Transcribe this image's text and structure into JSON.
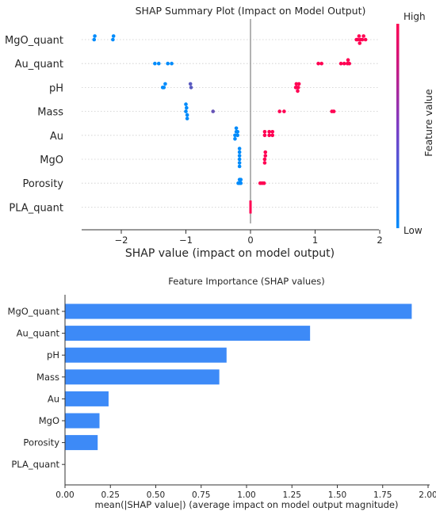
{
  "chart_data": [
    {
      "type": "scatter",
      "title": "SHAP Summary Plot (Impact on Model Output)",
      "xlabel": "SHAP value (impact on model output)",
      "ylabel": "",
      "xlim": [
        -2.65,
        2.05
      ],
      "xticks": [
        -2,
        -1,
        0,
        1,
        2
      ],
      "xtick_labels": [
        "−2",
        "−1",
        "0",
        "1",
        "2"
      ],
      "categories": [
        "MgO_quant",
        "Au_quant",
        "pH",
        "Mass",
        "Au",
        "MgO",
        "Porosity",
        "PLA_quant"
      ],
      "colorbar": {
        "label": "Feature value",
        "high_label": "High",
        "low_label": "Low",
        "high_color": "#ff0052",
        "low_color": "#008bfb"
      },
      "series": [
        {
          "feature": "MgO_quant",
          "points": [
            {
              "x": -2.42,
              "v": 0.0
            },
            {
              "x": -2.41,
              "v": 0.0
            },
            {
              "x": -2.13,
              "v": 0.0
            },
            {
              "x": -2.12,
              "v": 0.0
            },
            {
              "x": 1.64,
              "v": 1.0
            },
            {
              "x": 1.66,
              "v": 1.0
            },
            {
              "x": 1.68,
              "v": 1.0
            },
            {
              "x": 1.7,
              "v": 1.0
            },
            {
              "x": 1.73,
              "v": 1.0
            },
            {
              "x": 1.75,
              "v": 1.0
            },
            {
              "x": 1.78,
              "v": 1.0
            },
            {
              "x": 1.69,
              "v": 1.0
            }
          ]
        },
        {
          "feature": "Au_quant",
          "points": [
            {
              "x": -1.48,
              "v": 0.0
            },
            {
              "x": -1.42,
              "v": 0.0
            },
            {
              "x": -1.28,
              "v": 0.0
            },
            {
              "x": -1.22,
              "v": 0.0
            },
            {
              "x": 1.05,
              "v": 1.0
            },
            {
              "x": 1.1,
              "v": 1.0
            },
            {
              "x": 1.4,
              "v": 1.0
            },
            {
              "x": 1.45,
              "v": 1.0
            },
            {
              "x": 1.5,
              "v": 1.0
            },
            {
              "x": 1.53,
              "v": 1.0
            },
            {
              "x": 1.51,
              "v": 1.0
            }
          ]
        },
        {
          "feature": "pH",
          "points": [
            {
              "x": -1.36,
              "v": 0.0
            },
            {
              "x": -1.34,
              "v": 0.0
            },
            {
              "x": -1.32,
              "v": 0.0
            },
            {
              "x": -0.92,
              "v": 0.35
            },
            {
              "x": -0.93,
              "v": 0.35
            },
            {
              "x": 0.7,
              "v": 1.0
            },
            {
              "x": 0.72,
              "v": 1.0
            },
            {
              "x": 0.74,
              "v": 1.0
            },
            {
              "x": 0.75,
              "v": 1.0
            },
            {
              "x": 0.71,
              "v": 1.0
            },
            {
              "x": 0.73,
              "v": 1.0
            }
          ]
        },
        {
          "feature": "Mass",
          "points": [
            {
              "x": -1.0,
              "v": 0.0
            },
            {
              "x": -0.99,
              "v": 0.0
            },
            {
              "x": -0.98,
              "v": 0.0
            },
            {
              "x": -1.0,
              "v": 0.0
            },
            {
              "x": -0.98,
              "v": 0.0
            },
            {
              "x": -0.58,
              "v": 0.4
            },
            {
              "x": 0.45,
              "v": 1.0
            },
            {
              "x": 0.52,
              "v": 1.0
            },
            {
              "x": 1.26,
              "v": 1.0
            },
            {
              "x": 1.29,
              "v": 1.0
            }
          ]
        },
        {
          "feature": "Au",
          "points": [
            {
              "x": -0.24,
              "v": 0.0
            },
            {
              "x": -0.22,
              "v": 0.0
            },
            {
              "x": -0.2,
              "v": 0.0
            },
            {
              "x": -0.24,
              "v": 0.0
            },
            {
              "x": -0.22,
              "v": 0.0
            },
            {
              "x": -0.2,
              "v": 0.0
            },
            {
              "x": 0.22,
              "v": 1.0
            },
            {
              "x": 0.29,
              "v": 1.0
            },
            {
              "x": 0.34,
              "v": 1.0
            },
            {
              "x": 0.22,
              "v": 1.0
            },
            {
              "x": 0.29,
              "v": 1.0
            },
            {
              "x": 0.34,
              "v": 1.0
            }
          ]
        },
        {
          "feature": "MgO",
          "points": [
            {
              "x": -0.17,
              "v": 0.0
            },
            {
              "x": -0.17,
              "v": 0.0
            },
            {
              "x": -0.17,
              "v": 0.0
            },
            {
              "x": -0.17,
              "v": 0.0
            },
            {
              "x": -0.17,
              "v": 0.0
            },
            {
              "x": -0.17,
              "v": 0.0
            },
            {
              "x": 0.22,
              "v": 1.0
            },
            {
              "x": 0.23,
              "v": 1.0
            },
            {
              "x": 0.22,
              "v": 1.0
            },
            {
              "x": 0.23,
              "v": 1.0
            }
          ]
        },
        {
          "feature": "Porosity",
          "points": [
            {
              "x": -0.19,
              "v": 0.0
            },
            {
              "x": -0.17,
              "v": 0.0
            },
            {
              "x": -0.15,
              "v": 0.0
            },
            {
              "x": -0.17,
              "v": 0.0
            },
            {
              "x": -0.15,
              "v": 0.0
            },
            {
              "x": 0.15,
              "v": 1.0
            },
            {
              "x": 0.18,
              "v": 1.0
            },
            {
              "x": 0.21,
              "v": 1.0
            }
          ]
        },
        {
          "feature": "PLA_quant",
          "points": [
            {
              "x": 0.0,
              "v": 1.0
            },
            {
              "x": 0.0,
              "v": 1.0
            },
            {
              "x": 0.0,
              "v": 1.0
            },
            {
              "x": 0.0,
              "v": 1.0
            },
            {
              "x": 0.0,
              "v": 1.0
            },
            {
              "x": 0.0,
              "v": 1.0
            },
            {
              "x": 0.0,
              "v": 1.0
            },
            {
              "x": 0.0,
              "v": 1.0
            }
          ]
        }
      ]
    },
    {
      "type": "bar",
      "orientation": "horizontal",
      "title": "Feature Importance (SHAP values)",
      "xlabel": "mean(|SHAP value|) (average impact on model output magnitude)",
      "ylabel": "",
      "xlim": [
        0,
        2.02
      ],
      "xticks": [
        0.0,
        0.25,
        0.5,
        0.75,
        1.0,
        1.25,
        1.5,
        1.75,
        2.0
      ],
      "xtick_labels": [
        "0.00",
        "0.25",
        "0.50",
        "0.75",
        "1.00",
        "1.25",
        "1.50",
        "1.75",
        "2.00"
      ],
      "categories": [
        "MgO_quant",
        "Au_quant",
        "pH",
        "Mass",
        "Au",
        "MgO",
        "Porosity",
        "PLA_quant"
      ],
      "values": [
        1.91,
        1.35,
        0.89,
        0.85,
        0.24,
        0.19,
        0.18,
        0.0
      ],
      "color": "#3d8af7"
    }
  ]
}
